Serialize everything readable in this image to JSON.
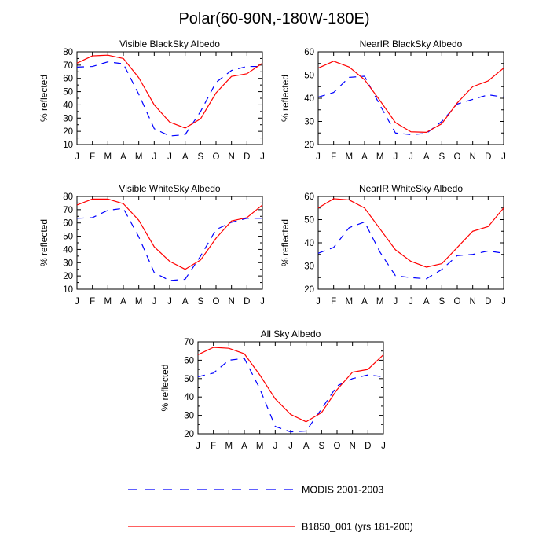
{
  "figure": {
    "title": "Polar(60-90N,-180W-180E)"
  },
  "colors": {
    "modis": "#0000ff",
    "model": "#ff0000",
    "axes": "#000000"
  },
  "legend": {
    "items": [
      {
        "label": "MODIS 2001-2003",
        "style": "dashed",
        "color": "#0000ff"
      },
      {
        "label": "B1850_001 (yrs 181-200)",
        "style": "solid",
        "color": "#ff0000"
      }
    ]
  },
  "chart_data": [
    {
      "type": "line",
      "title": "Visible BlackSky Albedo",
      "ylabel": "% reflected",
      "xlabel": "",
      "categories": [
        "J",
        "F",
        "M",
        "A",
        "M",
        "J",
        "J",
        "A",
        "S",
        "O",
        "N",
        "D",
        "J"
      ],
      "ylim": [
        10,
        80
      ],
      "yticks": [
        10,
        20,
        30,
        40,
        50,
        60,
        70,
        80
      ],
      "series": [
        {
          "name": "MODIS 2001-2003",
          "values": [
            68.5,
            69,
            72.5,
            71,
            48,
            22,
            16.5,
            17.5,
            35,
            57,
            66,
            69,
            69
          ]
        },
        {
          "name": "B1850_001 (yrs 181-200)",
          "values": [
            71.5,
            77,
            77.5,
            75,
            60.5,
            40,
            27,
            22.5,
            29.5,
            49,
            61.5,
            63.5,
            71.5
          ]
        }
      ]
    },
    {
      "type": "line",
      "title": "NearIR BlackSky Albedo",
      "ylabel": "% reflected",
      "xlabel": "",
      "categories": [
        "J",
        "F",
        "M",
        "A",
        "M",
        "J",
        "J",
        "A",
        "S",
        "O",
        "N",
        "D",
        "J"
      ],
      "ylim": [
        20,
        60
      ],
      "yticks": [
        20,
        30,
        40,
        50,
        60
      ],
      "series": [
        {
          "name": "MODIS 2001-2003",
          "values": [
            40.5,
            42.5,
            49,
            49.5,
            37,
            25,
            24.3,
            24.8,
            30,
            37.5,
            39.5,
            41.5,
            40.5
          ]
        },
        {
          "name": "B1850_001 (yrs 181-200)",
          "values": [
            53,
            56,
            53.5,
            48,
            39,
            29.5,
            25.5,
            25.3,
            29,
            38,
            45,
            47.5,
            53
          ]
        }
      ]
    },
    {
      "type": "line",
      "title": "Visible WhiteSky Albedo",
      "ylabel": "% reflected",
      "xlabel": "",
      "categories": [
        "J",
        "F",
        "M",
        "A",
        "M",
        "J",
        "J",
        "A",
        "S",
        "O",
        "N",
        "D",
        "J"
      ],
      "ylim": [
        10,
        80
      ],
      "yticks": [
        10,
        20,
        30,
        40,
        50,
        60,
        70,
        80
      ],
      "series": [
        {
          "name": "MODIS 2001-2003",
          "values": [
            63.5,
            64,
            69.5,
            71,
            49.5,
            22.5,
            16.5,
            17.5,
            35,
            55,
            60.5,
            63.5,
            63.5
          ]
        },
        {
          "name": "B1850_001 (yrs 181-200)",
          "values": [
            73.5,
            78,
            78,
            74.5,
            62,
            42,
            31,
            25,
            32,
            48.5,
            61.5,
            64,
            73.5
          ]
        }
      ]
    },
    {
      "type": "line",
      "title": "NearIR WhiteSky Albedo",
      "ylabel": "% reflected",
      "xlabel": "",
      "categories": [
        "J",
        "F",
        "M",
        "A",
        "M",
        "J",
        "J",
        "A",
        "S",
        "O",
        "N",
        "D",
        "J"
      ],
      "ylim": [
        20,
        60
      ],
      "yticks": [
        20,
        30,
        40,
        50,
        60
      ],
      "series": [
        {
          "name": "MODIS 2001-2003",
          "values": [
            35.5,
            38,
            46.5,
            49,
            36,
            25.8,
            25,
            24.5,
            28.5,
            34.5,
            35,
            36.5,
            35.5
          ]
        },
        {
          "name": "B1850_001 (yrs 181-200)",
          "values": [
            55,
            59,
            58.5,
            55,
            46,
            37,
            32,
            29.5,
            31,
            38,
            45,
            47,
            55
          ]
        }
      ]
    },
    {
      "type": "line",
      "title": "All Sky Albedo",
      "ylabel": "% reflected",
      "xlabel": "",
      "categories": [
        "J",
        "F",
        "M",
        "A",
        "M",
        "J",
        "J",
        "A",
        "S",
        "O",
        "N",
        "D",
        "J"
      ],
      "ylim": [
        20,
        70
      ],
      "yticks": [
        20,
        30,
        40,
        50,
        60,
        70
      ],
      "series": [
        {
          "name": "MODIS 2001-2003",
          "values": [
            51,
            53,
            60,
            61,
            44.5,
            24,
            21,
            21.5,
            33.5,
            46,
            50,
            52,
            51
          ]
        },
        {
          "name": "B1850_001 (yrs 181-200)",
          "values": [
            63,
            67,
            66.5,
            63.5,
            52,
            39,
            30.5,
            26.5,
            31.5,
            44,
            53.5,
            55,
            63
          ]
        }
      ]
    }
  ]
}
